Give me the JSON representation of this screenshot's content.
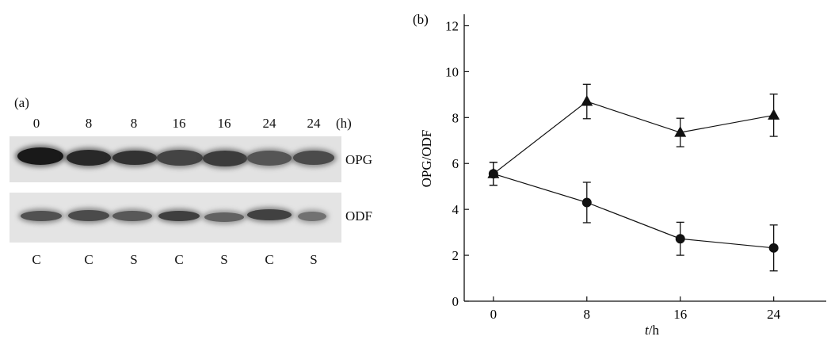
{
  "panel_a": {
    "label": "(a)",
    "lane_times": [
      "0",
      "8",
      "8",
      "16",
      "16",
      "24",
      "24"
    ],
    "time_unit": "(h)",
    "band_labels": {
      "top": "OPG",
      "bottom": "ODF"
    },
    "conditions": [
      "C",
      "C",
      "S",
      "C",
      "S",
      "C",
      "S"
    ],
    "opg_intensity": [
      1.0,
      0.88,
      0.8,
      0.66,
      0.72,
      0.52,
      0.6
    ],
    "odf_intensity": [
      0.55,
      0.6,
      0.5,
      0.7,
      0.42,
      0.68,
      0.3
    ]
  },
  "chart_data": {
    "type": "line",
    "panel_label": "(b)",
    "xlabel_italic": "t",
    "xlabel_rest": "/h",
    "ylabel": "OPG/ODF",
    "x": [
      0,
      8,
      16,
      24
    ],
    "xlim": [
      -2.5,
      28.5
    ],
    "ylim": [
      0,
      12.5
    ],
    "xticks": [
      0,
      8,
      16,
      24
    ],
    "yticks": [
      0,
      2,
      4,
      6,
      8,
      10,
      12
    ],
    "grid": false,
    "series": [
      {
        "marker": "triangle",
        "values": [
          5.55,
          8.7,
          7.35,
          8.1
        ],
        "error": [
          0.5,
          0.75,
          0.62,
          0.92
        ]
      },
      {
        "marker": "circle",
        "values": [
          5.55,
          4.3,
          2.72,
          2.32
        ],
        "error": [
          0.5,
          0.88,
          0.72,
          1.0
        ]
      }
    ]
  }
}
